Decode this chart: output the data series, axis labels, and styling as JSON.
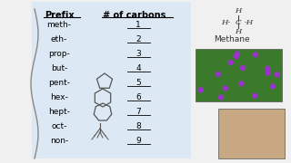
{
  "bg_color": "#e8e8e8",
  "table_bg": "#dde8f0",
  "header": [
    "Prefix",
    "# of carbons"
  ],
  "rows": [
    [
      "meth-",
      "1"
    ],
    [
      "eth-",
      "2"
    ],
    [
      "prop-",
      "3"
    ],
    [
      "but-",
      "4"
    ],
    [
      "pent-",
      "5"
    ],
    [
      "hex-",
      "6"
    ],
    [
      "hept-",
      "7"
    ],
    [
      "oct-",
      "8"
    ],
    [
      "non-",
      "9"
    ]
  ],
  "title_color": "#000000",
  "text_color": "#000000",
  "handwriting_color": "#555555"
}
